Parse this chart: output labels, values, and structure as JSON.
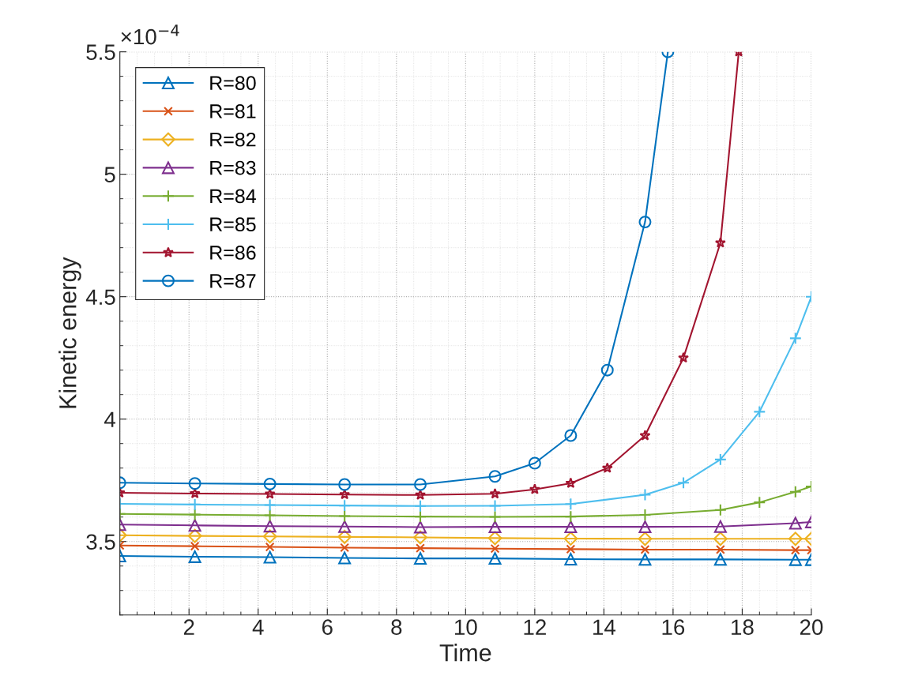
{
  "chart_data": {
    "type": "line",
    "xlabel": "Time",
    "ylabel": "Kinetic energy",
    "xlim": [
      0,
      20
    ],
    "ylim": [
      3.2,
      5.5
    ],
    "xticks": [
      2,
      4,
      6,
      8,
      10,
      12,
      14,
      16,
      18,
      20
    ],
    "yticks": [
      3.5,
      4,
      4.5,
      5,
      5.5
    ],
    "grid": true,
    "legend": "top left",
    "annotations": [
      "×10$^{−4}$"
    ],
    "series": [
      {
        "name": "R=80",
        "color": "#0072bd",
        "marker": "triangle",
        "x": [
          0,
          2.17,
          4.34,
          6.5,
          8.69,
          10.85,
          13.04,
          15.19,
          17.37,
          19.54,
          20
        ],
        "values": [
          3.441,
          3.438,
          3.436,
          3.433,
          3.431,
          3.431,
          3.428,
          3.427,
          3.427,
          3.426,
          3.426
        ]
      },
      {
        "name": "R=81",
        "color": "#d95319",
        "marker": "cross",
        "x": [
          0,
          2.17,
          4.34,
          6.5,
          8.69,
          10.85,
          13.04,
          15.19,
          17.37,
          19.54,
          20
        ],
        "values": [
          3.484,
          3.481,
          3.478,
          3.475,
          3.473,
          3.471,
          3.469,
          3.467,
          3.467,
          3.465,
          3.465
        ]
      },
      {
        "name": "R=82",
        "color": "#edb120",
        "marker": "diamond",
        "x": [
          0,
          2.17,
          4.34,
          6.5,
          8.69,
          10.85,
          13.04,
          15.19,
          17.37,
          19.54,
          20
        ],
        "values": [
          3.526,
          3.523,
          3.521,
          3.519,
          3.517,
          3.514,
          3.512,
          3.511,
          3.511,
          3.511,
          3.511
        ]
      },
      {
        "name": "R=83",
        "color": "#7e2f8e",
        "marker": "triangle",
        "x": [
          0,
          2.17,
          4.34,
          6.5,
          8.69,
          10.85,
          13.04,
          15.19,
          17.37,
          19.54,
          20
        ],
        "values": [
          3.569,
          3.566,
          3.563,
          3.561,
          3.559,
          3.56,
          3.56,
          3.56,
          3.561,
          3.575,
          3.58
        ]
      },
      {
        "name": "R=84",
        "color": "#77ac30",
        "marker": "plus",
        "x": [
          0,
          2.17,
          4.34,
          6.5,
          8.69,
          10.85,
          13.04,
          15.19,
          17.37,
          18.5,
          19.54,
          20
        ],
        "values": [
          3.613,
          3.61,
          3.607,
          3.604,
          3.602,
          3.601,
          3.602,
          3.609,
          3.629,
          3.66,
          3.703,
          3.725
        ]
      },
      {
        "name": "R=85",
        "color": "#4dbeee",
        "marker": "plus",
        "x": [
          0,
          2.17,
          4.34,
          6.5,
          8.69,
          10.85,
          13.04,
          15.19,
          16.3,
          17.37,
          18.5,
          19.54,
          20
        ],
        "values": [
          3.654,
          3.651,
          3.649,
          3.647,
          3.645,
          3.646,
          3.653,
          3.691,
          3.74,
          3.835,
          4.03,
          4.33,
          4.5
        ]
      },
      {
        "name": "R=86",
        "color": "#a2142f",
        "marker": "star",
        "x": [
          0,
          2.17,
          4.34,
          6.5,
          8.69,
          10.85,
          12,
          13.04,
          14.1,
          15.19,
          16.3,
          17.37,
          17.9
        ],
        "values": [
          3.699,
          3.696,
          3.694,
          3.692,
          3.69,
          3.695,
          3.713,
          3.738,
          3.8,
          3.933,
          4.25,
          4.72,
          5.5
        ]
      },
      {
        "name": "R=87",
        "color": "#0072bd",
        "marker": "circle",
        "x": [
          0,
          2.17,
          4.34,
          6.5,
          8.69,
          10.85,
          12,
          13.04,
          14.1,
          15.19,
          15.85
        ],
        "values": [
          3.74,
          3.737,
          3.735,
          3.733,
          3.733,
          3.766,
          3.82,
          3.933,
          4.2,
          4.805,
          5.5
        ]
      }
    ]
  }
}
